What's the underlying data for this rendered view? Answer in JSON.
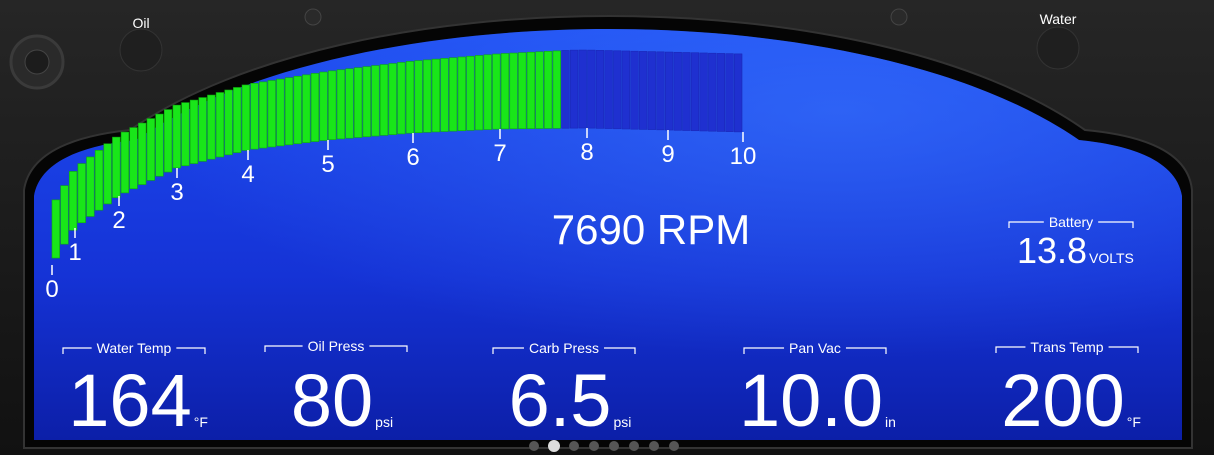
{
  "indicators": {
    "oil": "Oil",
    "water": "Water"
  },
  "tach": {
    "ticks": [
      0,
      1,
      2,
      3,
      4,
      5,
      6,
      7,
      8,
      9,
      10
    ],
    "rpm": {
      "value": 7690,
      "unit": "RPM"
    }
  },
  "battery": {
    "label": "Battery",
    "value": 13.8,
    "unit": "VOLTS"
  },
  "gauges": [
    {
      "label": "Water Temp",
      "value": 164,
      "unit": "°F"
    },
    {
      "label": "Oil Press",
      "value": 80,
      "unit": "psi"
    },
    {
      "label": "Carb Press",
      "value": 6.5,
      "unit": "psi"
    },
    {
      "label": "Pan Vac",
      "value": "10.0",
      "unit": "in"
    },
    {
      "label": "Trans Temp",
      "value": 200,
      "unit": "°F"
    }
  ]
}
